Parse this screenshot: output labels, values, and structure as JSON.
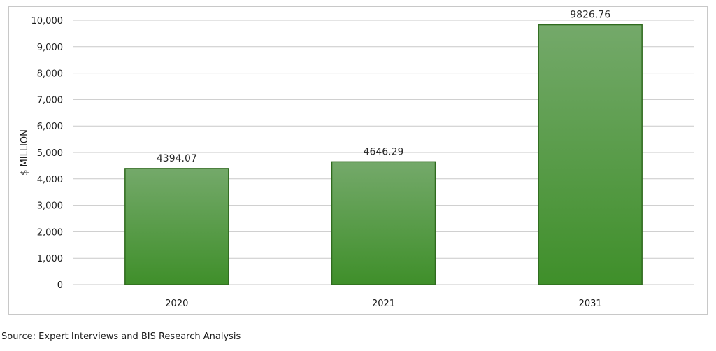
{
  "chart_data": {
    "type": "bar",
    "categories": [
      "2020",
      "2021",
      "2031"
    ],
    "values": [
      4394.07,
      4646.29,
      9826.76
    ],
    "data_labels": [
      "4394.07",
      "4646.29",
      "9826.76"
    ],
    "ylabel": "$ MILLION",
    "ylim": [
      0,
      10000
    ],
    "yticks": [
      0,
      1000,
      2000,
      3000,
      4000,
      5000,
      6000,
      7000,
      8000,
      9000,
      10000
    ],
    "ytick_labels": [
      "0",
      "1,000",
      "2,000",
      "3,000",
      "4,000",
      "5,000",
      "6,000",
      "7,000",
      "8,000",
      "9,000",
      "10,000"
    ],
    "grid": true,
    "legend": "none",
    "colors": {
      "bar_fill_light": "#74a96a",
      "bar_fill_dark": "#3f8f2a",
      "bar_edge": "#2f6a1e",
      "grid": "#c9c9c9"
    }
  },
  "footer": {
    "source": "Source: Expert Interviews and BIS Research Analysis"
  }
}
